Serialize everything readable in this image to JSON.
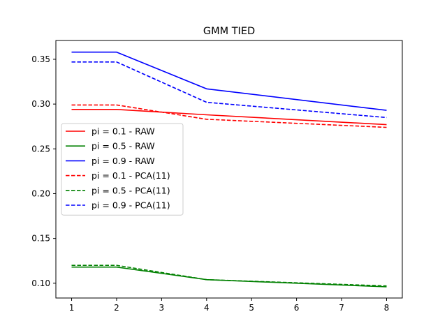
{
  "chart_data": {
    "type": "line",
    "title": "GMM TIED",
    "xlabel": "",
    "ylabel": "",
    "x": [
      1,
      2,
      4,
      8
    ],
    "xticks": [
      1,
      2,
      3,
      4,
      5,
      6,
      7,
      8
    ],
    "xtick_labels": [
      "1",
      "2",
      "3",
      "4",
      "5",
      "6",
      "7",
      "8"
    ],
    "yticks": [
      0.1,
      0.15,
      0.2,
      0.25,
      0.3,
      0.35
    ],
    "ytick_labels": [
      "0.10",
      "0.15",
      "0.20",
      "0.25",
      "0.30",
      "0.35"
    ],
    "xlim": [
      0.65,
      8.35
    ],
    "ylim": [
      0.0835,
      0.371
    ],
    "grid": false,
    "legend_position": "center-left",
    "series": [
      {
        "name": "pi = 0.1 - RAW",
        "color": "#ff0000",
        "style": "solid",
        "values": [
          0.294,
          0.294,
          0.288,
          0.277
        ]
      },
      {
        "name": "pi = 0.5 - RAW",
        "color": "#008000",
        "style": "solid",
        "values": [
          0.118,
          0.118,
          0.104,
          0.096
        ]
      },
      {
        "name": "pi = 0.9 - RAW",
        "color": "#0000ff",
        "style": "solid",
        "values": [
          0.358,
          0.358,
          0.317,
          0.293
        ]
      },
      {
        "name": "pi = 0.1 - PCA(11)",
        "color": "#ff0000",
        "style": "dashed",
        "values": [
          0.299,
          0.299,
          0.283,
          0.274
        ]
      },
      {
        "name": "pi = 0.5 - PCA(11)",
        "color": "#008000",
        "style": "dashed",
        "values": [
          0.12,
          0.12,
          0.104,
          0.097
        ]
      },
      {
        "name": "pi = 0.9 - PCA(11)",
        "color": "#0000ff",
        "style": "dashed",
        "values": [
          0.347,
          0.347,
          0.302,
          0.285
        ]
      }
    ]
  }
}
